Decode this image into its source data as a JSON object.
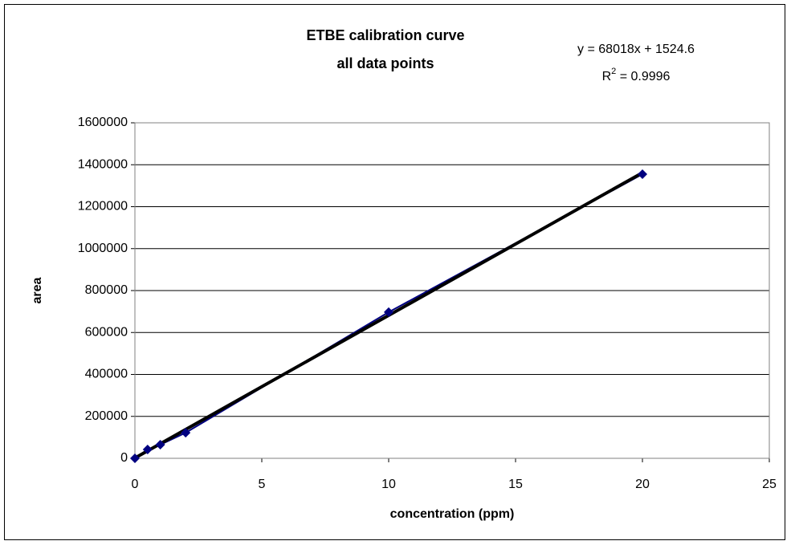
{
  "chart_data": {
    "type": "scatter",
    "title": [
      "ETBE calibration curve",
      "all data points"
    ],
    "x_label": "concentration (ppm)",
    "y_label": "area",
    "series": [
      {
        "name": "area",
        "color": "#000080",
        "x": [
          0,
          0.5,
          1,
          2,
          10,
          20
        ],
        "values": [
          0,
          42000,
          65000,
          122000,
          697000,
          1355000
        ]
      }
    ],
    "trendline": {
      "color": "#000000",
      "slope": 68018,
      "intercept": 1524.6,
      "equation": "y = 68018x + 1524.6",
      "r2": {
        "base": "R",
        "sup": "2",
        "rest": " = 0.9996"
      }
    },
    "xlim": [
      0,
      25
    ],
    "xticks": [
      0,
      5,
      10,
      15,
      20,
      25
    ],
    "ylim": [
      0,
      1600000
    ],
    "yticks": [
      0,
      200000,
      400000,
      600000,
      800000,
      1000000,
      1200000,
      1400000,
      1600000
    ],
    "grid": true
  }
}
